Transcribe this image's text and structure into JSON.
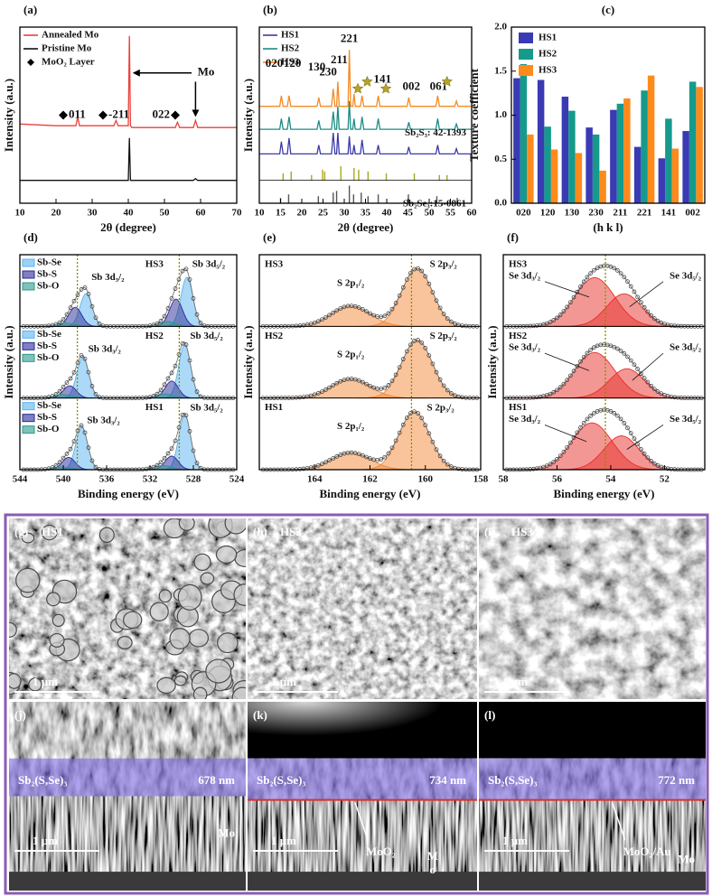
{
  "chart_data": [
    {
      "type": "line",
      "label": "(a)",
      "xlabel": "2θ (degree)",
      "ylabel": "Intensity (a.u.)",
      "xlim": [
        10,
        70
      ],
      "xticks": [
        10,
        20,
        30,
        40,
        50,
        60,
        70
      ],
      "ylim": [
        0,
        1
      ],
      "x": [
        10,
        20,
        25.5,
        26,
        26.5,
        30,
        36,
        36.6,
        37.2,
        40,
        40.3,
        40.6,
        41,
        50,
        53,
        53.6,
        54.2,
        58,
        58.6,
        59.2,
        70
      ],
      "series": [
        {
          "name": "Annealed Mo",
          "color": "#e8413c",
          "values": [
            0.45,
            0.44,
            0.44,
            0.49,
            0.44,
            0.44,
            0.44,
            0.47,
            0.44,
            0.44,
            0.95,
            0.44,
            0.43,
            0.43,
            0.43,
            0.46,
            0.43,
            0.43,
            0.47,
            0.43,
            0.43
          ]
        },
        {
          "name": "Pristine Mo",
          "color": "#111111",
          "values": [
            0.13,
            0.13,
            0.13,
            0.13,
            0.13,
            0.13,
            0.13,
            0.13,
            0.13,
            0.13,
            0.37,
            0.13,
            0.13,
            0.13,
            0.13,
            0.13,
            0.13,
            0.13,
            0.14,
            0.13,
            0.13
          ]
        }
      ],
      "marker_legend": "MoO₂ Layer",
      "annotations": [
        "011",
        "-211",
        "022",
        "Mo"
      ]
    },
    {
      "type": "line",
      "label": "(b)",
      "xlabel": "2θ (degree)",
      "ylabel": "Intensity (a.u.)",
      "xlim": [
        10,
        60
      ],
      "xticks": [
        10,
        15,
        20,
        25,
        30,
        35,
        40,
        45,
        50,
        55,
        60
      ],
      "ylim": [
        0,
        1
      ],
      "x": [
        10,
        14.8,
        15.2,
        15.6,
        16.6,
        17,
        17.4,
        23.6,
        24,
        24.4,
        27,
        27.4,
        27.8,
        28.2,
        28.5,
        28.8,
        30.9,
        31.2,
        31.5,
        32,
        32.3,
        32.6,
        33.8,
        34.2,
        34.6,
        37.6,
        38,
        38.4,
        44.8,
        45.2,
        45.6,
        51.6,
        52,
        52.4,
        56,
        56.4,
        56.8,
        60
      ],
      "series": [
        {
          "name": "HS1",
          "color": "#3b3ba8",
          "values": [
            0.28,
            0.28,
            0.35,
            0.28,
            0.28,
            0.37,
            0.28,
            0.28,
            0.33,
            0.28,
            0.28,
            0.4,
            0.28,
            0.28,
            0.4,
            0.28,
            0.28,
            0.38,
            0.28,
            0.28,
            0.33,
            0.28,
            0.28,
            0.36,
            0.28,
            0.28,
            0.33,
            0.28,
            0.28,
            0.32,
            0.28,
            0.28,
            0.33,
            0.28,
            0.28,
            0.31,
            0.28,
            0.28
          ]
        },
        {
          "name": "HS2",
          "color": "#1b8c84",
          "values": [
            0.42,
            0.42,
            0.48,
            0.42,
            0.42,
            0.49,
            0.42,
            0.42,
            0.47,
            0.42,
            0.42,
            0.52,
            0.42,
            0.42,
            0.55,
            0.42,
            0.42,
            0.58,
            0.42,
            0.42,
            0.48,
            0.42,
            0.42,
            0.49,
            0.42,
            0.42,
            0.48,
            0.42,
            0.42,
            0.46,
            0.42,
            0.42,
            0.48,
            0.42,
            0.42,
            0.45,
            0.42,
            0.42
          ]
        },
        {
          "name": "HS3",
          "color": "#f58a22",
          "values": [
            0.55,
            0.55,
            0.61,
            0.55,
            0.55,
            0.61,
            0.55,
            0.55,
            0.6,
            0.55,
            0.55,
            0.65,
            0.55,
            0.55,
            0.69,
            0.55,
            0.55,
            0.87,
            0.55,
            0.55,
            0.62,
            0.55,
            0.55,
            0.61,
            0.55,
            0.55,
            0.61,
            0.55,
            0.55,
            0.6,
            0.55,
            0.55,
            0.61,
            0.55,
            0.55,
            0.58,
            0.55,
            0.55
          ]
        }
      ],
      "references": [
        {
          "name": "Sb₂S₃: 42-1393",
          "color": "#a8a81c",
          "baseline": 0.13,
          "x": [
            15.6,
            17.5,
            22.3,
            24.9,
            25.4,
            29.2,
            32.3,
            33.4,
            35.6,
            39.9,
            46.5,
            52.4,
            54.2
          ],
          "values": [
            0.04,
            0.05,
            0.03,
            0.06,
            0.05,
            0.08,
            0.07,
            0.06,
            0.05,
            0.04,
            0.04,
            0.03,
            0.03
          ]
        },
        {
          "name": "Sb₂Se₃:15-0861",
          "color": "#555555",
          "baseline": 0,
          "x": [
            15,
            16.9,
            23.9,
            27.4,
            28.2,
            31.2,
            32.2,
            34,
            35.6,
            38,
            45.1,
            51.8,
            56.6
          ],
          "values": [
            0.03,
            0.05,
            0.04,
            0.06,
            0.07,
            0.1,
            0.05,
            0.06,
            0.04,
            0.05,
            0.05,
            0.04,
            0.03
          ]
        }
      ],
      "annotations": [
        "020",
        "120",
        "130",
        "230",
        "211",
        "221",
        "141",
        "002",
        "061"
      ]
    },
    {
      "type": "bar",
      "label": "(c)",
      "xlabel": "(h k l)",
      "ylabel": "Texture coefficient",
      "categories": [
        "020",
        "120",
        "130",
        "230",
        "211",
        "221",
        "141",
        "002"
      ],
      "ylim": [
        0,
        2
      ],
      "yticks": [
        {
          "value": 0,
          "label": "0.0"
        },
        0.5,
        {
          "value": 1,
          "label": "1.0"
        },
        1.5,
        {
          "value": 2,
          "label": "2.0"
        }
      ],
      "series": [
        {
          "name": "HS1",
          "color": "#3a3ab5",
          "values": [
            1.42,
            1.4,
            1.21,
            0.86,
            1.06,
            0.64,
            0.51,
            0.82
          ]
        },
        {
          "name": "HS2",
          "color": "#159a8c",
          "values": [
            1.58,
            0.87,
            1.05,
            0.78,
            1.13,
            1.28,
            0.96,
            1.38
          ]
        },
        {
          "name": "HS3",
          "color": "#ff8a1c",
          "values": [
            0.78,
            0.61,
            0.57,
            0.37,
            1.19,
            1.45,
            0.62,
            1.32
          ]
        }
      ]
    },
    {
      "type": "xps",
      "label": "(d)",
      "xlabel": "Binding energy (eV)",
      "ylabel": "Intensity (a.u.)",
      "xlim": [
        544,
        524
      ],
      "xticks": [
        544,
        540,
        536,
        532,
        528,
        524
      ],
      "ylim": [
        0,
        1.05
      ],
      "ref_lines": [
        538.7,
        529.3
      ],
      "panels": [
        {
          "name": "HS3",
          "peak_labels": [
            "Sb 3d₃/₂",
            "Sb 3d₅/₂"
          ],
          "series": [
            {
              "name": "Sb-Se",
              "color": "#5ab4f0",
              "centers": [
                537.9,
                528.6
              ],
              "heights": [
                0.48,
                0.72
              ],
              "widths": [
                0.55,
                0.55
              ]
            },
            {
              "name": "Sb-S",
              "color": "#2a2a9a",
              "centers": [
                538.9,
                529.6
              ],
              "heights": [
                0.28,
                0.4
              ],
              "widths": [
                0.6,
                0.6
              ]
            },
            {
              "name": "Sb-O",
              "color": "#2a9a8a",
              "centers": [
                539.8,
                530.4
              ],
              "heights": [
                0.05,
                0.07
              ],
              "widths": [
                0.8,
                0.8
              ]
            }
          ]
        },
        {
          "name": "HS2",
          "peak_labels": [
            "Sb 3d₃/₂",
            "Sb 3d₅/₂"
          ],
          "series": [
            {
              "name": "Sb-Se",
              "color": "#5ab4f0",
              "centers": [
                538.2,
                528.8
              ],
              "heights": [
                0.6,
                0.78
              ],
              "widths": [
                0.55,
                0.55
              ]
            },
            {
              "name": "Sb-S",
              "color": "#2a2a9a",
              "centers": [
                539.4,
                530
              ],
              "heights": [
                0.18,
                0.25
              ],
              "widths": [
                0.6,
                0.6
              ]
            },
            {
              "name": "Sb-O",
              "color": "#2a9a8a",
              "centers": [
                540,
                530.6
              ],
              "heights": [
                0.05,
                0.06
              ],
              "widths": [
                0.8,
                0.8
              ]
            }
          ]
        },
        {
          "name": "HS1",
          "peak_labels": [
            "Sb 3d₃/₂",
            "Sb 3d₅/₂"
          ],
          "series": [
            {
              "name": "Sb-Se",
              "color": "#5ab4f0",
              "centers": [
                538.3,
                528.8
              ],
              "heights": [
                0.62,
                0.8
              ],
              "widths": [
                0.55,
                0.55
              ]
            },
            {
              "name": "Sb-S",
              "color": "#2a2a9a",
              "centers": [
                539.5,
                530
              ],
              "heights": [
                0.18,
                0.2
              ],
              "widths": [
                0.6,
                0.6
              ]
            },
            {
              "name": "Sb-O",
              "color": "#2a9a8a",
              "centers": [
                540.2,
                530.8
              ],
              "heights": [
                0.04,
                0.06
              ],
              "widths": [
                0.8,
                0.8
              ]
            }
          ]
        }
      ]
    },
    {
      "type": "xps",
      "label": "(e)",
      "xlabel": "Binding energy (eV)",
      "ylabel": "Intensity (a.u.)",
      "xlim": [
        166,
        158
      ],
      "xticks": [
        164,
        162,
        160,
        158
      ],
      "ylim": [
        0,
        1.05
      ],
      "ref_lines": [
        160.5
      ],
      "panels": [
        {
          "name": "HS3",
          "peak_labels": [
            "S 2p₁/₂",
            "S 2p₃/₂"
          ],
          "series": [
            {
              "color": "#f4893a",
              "centers": [
                162.7,
                160.3
              ],
              "heights": [
                0.3,
                0.85
              ],
              "widths": [
                0.7,
                0.55
              ]
            }
          ]
        },
        {
          "name": "HS2",
          "peak_labels": [
            "S 2p₁/₂",
            "S 2p₃/₂"
          ],
          "series": [
            {
              "color": "#f4893a",
              "centers": [
                162.7,
                160.3
              ],
              "heights": [
                0.28,
                0.85
              ],
              "widths": [
                0.7,
                0.55
              ]
            }
          ]
        },
        {
          "name": "HS1",
          "peak_labels": [
            "S 2p₁/₂",
            "S 2p₃/₂"
          ],
          "series": [
            {
              "color": "#f4893a",
              "centers": [
                162.7,
                160.4
              ],
              "heights": [
                0.25,
                0.85
              ],
              "widths": [
                0.7,
                0.55
              ]
            }
          ]
        }
      ]
    },
    {
      "type": "xps",
      "label": "(f)",
      "xlabel": "Binding energy (eV)",
      "ylabel": "Intensity (a.u.)",
      "xlim": [
        58,
        50.5
      ],
      "xticks": [
        58,
        56,
        54,
        52
      ],
      "ylim": [
        0,
        1.1
      ],
      "ref_lines": [
        54.2
      ],
      "panels": [
        {
          "name": "HS3",
          "peak_labels": [
            "Se 3d₃/₂",
            "Se 3d₅/₂"
          ],
          "series": [
            {
              "color": "#e8302a",
              "centers": [
                54.6,
                53.5
              ],
              "heights": [
                0.75,
                0.5
              ],
              "widths": [
                0.75,
                0.65
              ]
            }
          ]
        },
        {
          "name": "HS2",
          "peak_labels": [
            "Se 3d₃/₂",
            "Se 3d₅/₂"
          ],
          "series": [
            {
              "color": "#e8302a",
              "centers": [
                54.6,
                53.4
              ],
              "heights": [
                0.7,
                0.45
              ],
              "widths": [
                0.75,
                0.65
              ]
            }
          ]
        },
        {
          "name": "HS1",
          "peak_labels": [
            "Se 3d₃/₂",
            "Se 3d₅/₂"
          ],
          "series": [
            {
              "color": "#e8302a",
              "centers": [
                54.7,
                53.6
              ],
              "heights": [
                0.72,
                0.52
              ],
              "widths": [
                0.75,
                0.65
              ]
            }
          ]
        }
      ]
    }
  ],
  "sem_images": [
    {
      "label": "(g)",
      "caption": "HS1",
      "scale_bar": "1 μm"
    },
    {
      "label": "(h)",
      "caption": "HS2",
      "scale_bar": "1 μm"
    },
    {
      "label": "(i)",
      "caption": "HS3",
      "scale_bar": "1 μm"
    },
    {
      "label": "(j)",
      "layer": "Sb₂(S,Se)₃",
      "thickness": "678 nm",
      "substrate": "Mo",
      "scale_bar": "1 μm"
    },
    {
      "label": "(k)",
      "layer": "Sb₂(S,Se)₃",
      "thickness": "734 nm",
      "interface": "MoO₂",
      "substrate": "Mo",
      "substrate_vertical": true,
      "scale_bar": "1 μm"
    },
    {
      "label": "(l)",
      "layer": "Sb₂(S,Se)₃",
      "thickness": "772 nm",
      "interface": "MoO₂/Au",
      "substrate": "Mo",
      "scale_bar": "1 μm"
    }
  ]
}
